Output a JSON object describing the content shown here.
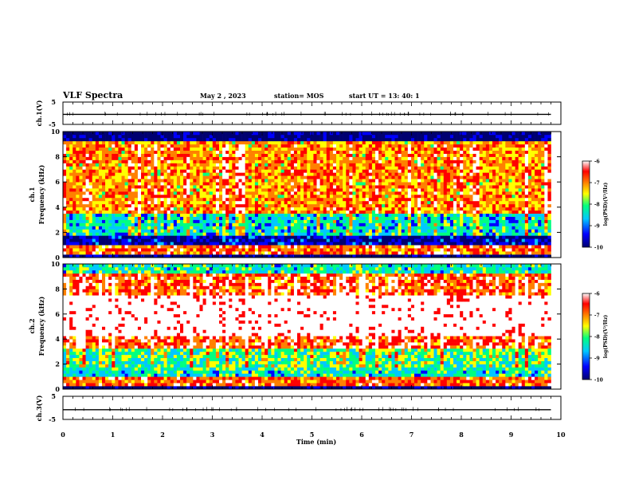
{
  "header": {
    "title": "VLF Spectra",
    "date": "May 2 , 2023",
    "station": "station= MOS",
    "start": "start  UT  =   13: 40: 1"
  },
  "chart_data": [
    {
      "type": "line",
      "panel": "ch1-waveform",
      "ylabel": "ch.1(V)",
      "ylim": [
        -5,
        5
      ],
      "y_ticks": [
        "5",
        "-5"
      ],
      "x": [
        0,
        1,
        2,
        3,
        4,
        5,
        6,
        7,
        8,
        9,
        9.8
      ],
      "values": [
        -0.5,
        -0.5,
        -0.5,
        -0.5,
        -0.5,
        -0.5,
        -0.5,
        -0.5,
        -0.5,
        -0.5,
        -0.5
      ],
      "colors": {
        "trace": "#000000"
      }
    },
    {
      "type": "heatmap",
      "panel": "ch1-spectrogram",
      "ylabel": "ch.1\nFrequency (kHz)",
      "ylim": [
        0,
        10
      ],
      "xlim": [
        0,
        9.8
      ],
      "y_ticks": [
        "0",
        "2",
        "4",
        "6",
        "8",
        "10"
      ],
      "colorbar": {
        "label": "log(PSD)(V²/Hz)",
        "range": [
          -10,
          -6
        ],
        "ticks": [
          "-6",
          "-7",
          "-8",
          "-9",
          "-10"
        ]
      },
      "band_profile_khz": [
        [
          0,
          0.3,
          -9.8
        ],
        [
          0.3,
          1.1,
          -7.0
        ],
        [
          1.1,
          1.8,
          -9.5
        ],
        [
          1.8,
          3.5,
          -8.6
        ],
        [
          3.5,
          9.2,
          -7.4
        ],
        [
          9.2,
          10,
          -9.9
        ]
      ]
    },
    {
      "type": "heatmap",
      "panel": "ch2-spectrogram",
      "ylabel": "ch.2\nFrequency (kHz)",
      "ylim": [
        0,
        10
      ],
      "xlim": [
        0,
        9.8
      ],
      "y_ticks": [
        "0",
        "2",
        "4",
        "6",
        "8",
        "10"
      ],
      "colorbar": {
        "label": "log(PSD)(V²/Hz)",
        "range": [
          -10,
          -6
        ],
        "ticks": [
          "-6",
          "-7",
          "-8",
          "-9",
          "-10"
        ]
      },
      "band_profile_khz": [
        [
          0,
          0.3,
          -9.8
        ],
        [
          0.3,
          1.0,
          -7.0
        ],
        [
          1.0,
          1.5,
          -8.5
        ],
        [
          1.5,
          3.3,
          -8.3
        ],
        [
          3.3,
          4.2,
          -7.0
        ],
        [
          4.2,
          7.5,
          -6.1
        ],
        [
          7.5,
          9.3,
          -7.0
        ],
        [
          9.3,
          10,
          -8.4
        ]
      ]
    },
    {
      "type": "line",
      "panel": "ch3-waveform",
      "ylabel": "ch.3(V)",
      "ylim": [
        -5,
        5
      ],
      "y_ticks": [
        "5",
        "-5"
      ],
      "x": [
        0,
        9.8
      ],
      "values": [
        -0.8,
        -0.8
      ],
      "colors": {
        "trace": "#000000"
      }
    }
  ],
  "x_axis": {
    "label": "Time  (min)",
    "range": [
      0,
      10
    ],
    "ticks": [
      "0",
      "1",
      "2",
      "3",
      "4",
      "5",
      "6",
      "7",
      "8",
      "9",
      "10"
    ]
  },
  "colors": {
    "background": "#ffffff",
    "axis": "#000000",
    "colormap": [
      "#000070",
      "#0000ff",
      "#00c8ff",
      "#00ff80",
      "#ffff00",
      "#ff8000",
      "#ff0000",
      "#ffffff"
    ]
  }
}
